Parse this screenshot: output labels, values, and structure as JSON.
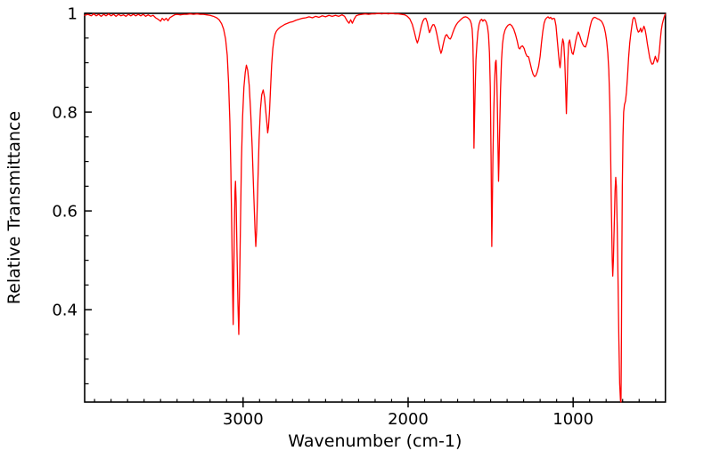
{
  "figure": {
    "background": "#ffffff"
  },
  "chart_data": {
    "type": "line",
    "title": "",
    "xlabel": "Wavenumber (cm-1)",
    "ylabel": "Relative Transmittance",
    "legend": "none",
    "grid": false,
    "line_color": "#ff0000",
    "frame_color": "#000000",
    "x_axis": {
      "lim": [
        3960,
        441
      ],
      "reversed": true,
      "major_ticks": [
        3000,
        2000,
        1000
      ],
      "tick_labels": [
        "3000",
        "2000",
        "1000"
      ],
      "minor_tick_step": 100
    },
    "y_axis": {
      "lim": [
        0.213,
        1.0
      ],
      "major_ticks": [
        1.0,
        0.8,
        0.6,
        0.4
      ],
      "tick_labels": [
        "1",
        "0.8",
        "0.6",
        "0.4"
      ],
      "minor_tick_step": 0.05
    },
    "points": [
      [
        3960,
        0.996
      ],
      [
        3940,
        0.998
      ],
      [
        3920,
        0.995
      ],
      [
        3905,
        0.999
      ],
      [
        3890,
        0.995
      ],
      [
        3875,
        0.998
      ],
      [
        3860,
        0.994
      ],
      [
        3845,
        0.998
      ],
      [
        3830,
        0.995
      ],
      [
        3815,
        0.999
      ],
      [
        3800,
        0.995
      ],
      [
        3785,
        0.998
      ],
      [
        3770,
        0.994
      ],
      [
        3755,
        0.998
      ],
      [
        3740,
        0.995
      ],
      [
        3725,
        0.997
      ],
      [
        3710,
        0.994
      ],
      [
        3695,
        0.998
      ],
      [
        3680,
        0.995
      ],
      [
        3665,
        0.998
      ],
      [
        3650,
        0.995
      ],
      [
        3635,
        0.998
      ],
      [
        3620,
        0.995
      ],
      [
        3605,
        0.998
      ],
      [
        3590,
        0.994
      ],
      [
        3575,
        0.997
      ],
      [
        3560,
        0.994
      ],
      [
        3545,
        0.996
      ],
      [
        3530,
        0.991
      ],
      [
        3515,
        0.988
      ],
      [
        3500,
        0.984
      ],
      [
        3490,
        0.99
      ],
      [
        3478,
        0.986
      ],
      [
        3466,
        0.99
      ],
      [
        3455,
        0.985
      ],
      [
        3444,
        0.991
      ],
      [
        3430,
        0.994
      ],
      [
        3415,
        0.997
      ],
      [
        3400,
        0.998
      ],
      [
        3380,
        0.997
      ],
      [
        3360,
        0.998
      ],
      [
        3340,
        0.998
      ],
      [
        3320,
        0.999
      ],
      [
        3300,
        0.998
      ],
      [
        3280,
        0.999
      ],
      [
        3260,
        0.998
      ],
      [
        3240,
        0.998
      ],
      [
        3220,
        0.997
      ],
      [
        3200,
        0.996
      ],
      [
        3180,
        0.994
      ],
      [
        3160,
        0.991
      ],
      [
        3145,
        0.987
      ],
      [
        3130,
        0.979
      ],
      [
        3118,
        0.968
      ],
      [
        3106,
        0.948
      ],
      [
        3096,
        0.915
      ],
      [
        3088,
        0.86
      ],
      [
        3080,
        0.78
      ],
      [
        3074,
        0.68
      ],
      [
        3068,
        0.55
      ],
      [
        3063,
        0.43
      ],
      [
        3060,
        0.37
      ],
      [
        3057,
        0.45
      ],
      [
        3053,
        0.56
      ],
      [
        3049,
        0.64
      ],
      [
        3046,
        0.66
      ],
      [
        3042,
        0.62
      ],
      [
        3037,
        0.52
      ],
      [
        3031,
        0.41
      ],
      [
        3026,
        0.35
      ],
      [
        3022,
        0.43
      ],
      [
        3016,
        0.57
      ],
      [
        3010,
        0.7
      ],
      [
        3003,
        0.79
      ],
      [
        2995,
        0.85
      ],
      [
        2987,
        0.88
      ],
      [
        2980,
        0.895
      ],
      [
        2972,
        0.885
      ],
      [
        2963,
        0.855
      ],
      [
        2954,
        0.8
      ],
      [
        2945,
        0.73
      ],
      [
        2936,
        0.64
      ],
      [
        2928,
        0.565
      ],
      [
        2923,
        0.528
      ],
      [
        2918,
        0.56
      ],
      [
        2911,
        0.65
      ],
      [
        2903,
        0.745
      ],
      [
        2895,
        0.805
      ],
      [
        2887,
        0.835
      ],
      [
        2878,
        0.845
      ],
      [
        2870,
        0.83
      ],
      [
        2862,
        0.8
      ],
      [
        2855,
        0.775
      ],
      [
        2851,
        0.758
      ],
      [
        2846,
        0.77
      ],
      [
        2840,
        0.8
      ],
      [
        2834,
        0.845
      ],
      [
        2827,
        0.895
      ],
      [
        2820,
        0.928
      ],
      [
        2813,
        0.947
      ],
      [
        2806,
        0.958
      ],
      [
        2798,
        0.964
      ],
      [
        2788,
        0.968
      ],
      [
        2775,
        0.972
      ],
      [
        2760,
        0.975
      ],
      [
        2745,
        0.978
      ],
      [
        2730,
        0.98
      ],
      [
        2715,
        0.982
      ],
      [
        2700,
        0.983
      ],
      [
        2680,
        0.986
      ],
      [
        2660,
        0.988
      ],
      [
        2640,
        0.99
      ],
      [
        2620,
        0.991
      ],
      [
        2600,
        0.993
      ],
      [
        2580,
        0.991
      ],
      [
        2560,
        0.994
      ],
      [
        2540,
        0.992
      ],
      [
        2520,
        0.995
      ],
      [
        2500,
        0.993
      ],
      [
        2480,
        0.996
      ],
      [
        2460,
        0.994
      ],
      [
        2440,
        0.996
      ],
      [
        2420,
        0.994
      ],
      [
        2400,
        0.997
      ],
      [
        2385,
        0.994
      ],
      [
        2370,
        0.985
      ],
      [
        2358,
        0.98
      ],
      [
        2348,
        0.987
      ],
      [
        2338,
        0.98
      ],
      [
        2326,
        0.989
      ],
      [
        2315,
        0.995
      ],
      [
        2300,
        0.997
      ],
      [
        2280,
        0.998
      ],
      [
        2260,
        0.999
      ],
      [
        2240,
        0.998
      ],
      [
        2220,
        0.999
      ],
      [
        2200,
        0.999
      ],
      [
        2180,
        1.0
      ],
      [
        2160,
        0.999
      ],
      [
        2140,
        1.0
      ],
      [
        2120,
        0.999
      ],
      [
        2100,
        1.0
      ],
      [
        2080,
        0.999
      ],
      [
        2060,
        0.999
      ],
      [
        2040,
        0.998
      ],
      [
        2020,
        0.997
      ],
      [
        2005,
        0.994
      ],
      [
        1990,
        0.989
      ],
      [
        1975,
        0.978
      ],
      [
        1962,
        0.962
      ],
      [
        1952,
        0.948
      ],
      [
        1944,
        0.94
      ],
      [
        1937,
        0.947
      ],
      [
        1929,
        0.96
      ],
      [
        1920,
        0.974
      ],
      [
        1911,
        0.984
      ],
      [
        1902,
        0.989
      ],
      [
        1893,
        0.99
      ],
      [
        1884,
        0.982
      ],
      [
        1877,
        0.97
      ],
      [
        1871,
        0.961
      ],
      [
        1865,
        0.965
      ],
      [
        1858,
        0.972
      ],
      [
        1850,
        0.977
      ],
      [
        1843,
        0.977
      ],
      [
        1835,
        0.971
      ],
      [
        1826,
        0.958
      ],
      [
        1816,
        0.941
      ],
      [
        1808,
        0.928
      ],
      [
        1801,
        0.919
      ],
      [
        1795,
        0.925
      ],
      [
        1788,
        0.936
      ],
      [
        1780,
        0.948
      ],
      [
        1773,
        0.955
      ],
      [
        1766,
        0.957
      ],
      [
        1759,
        0.953
      ],
      [
        1751,
        0.949
      ],
      [
        1744,
        0.948
      ],
      [
        1737,
        0.953
      ],
      [
        1729,
        0.961
      ],
      [
        1720,
        0.969
      ],
      [
        1710,
        0.976
      ],
      [
        1700,
        0.981
      ],
      [
        1688,
        0.985
      ],
      [
        1676,
        0.989
      ],
      [
        1664,
        0.992
      ],
      [
        1652,
        0.993
      ],
      [
        1642,
        0.992
      ],
      [
        1632,
        0.989
      ],
      [
        1624,
        0.986
      ],
      [
        1617,
        0.979
      ],
      [
        1612,
        0.968
      ],
      [
        1608,
        0.945
      ],
      [
        1604,
        0.88
      ],
      [
        1601,
        0.727
      ],
      [
        1598,
        0.78
      ],
      [
        1594,
        0.845
      ],
      [
        1589,
        0.906
      ],
      [
        1583,
        0.938
      ],
      [
        1577,
        0.963
      ],
      [
        1570,
        0.978
      ],
      [
        1562,
        0.986
      ],
      [
        1554,
        0.988
      ],
      [
        1547,
        0.984
      ],
      [
        1540,
        0.987
      ],
      [
        1533,
        0.986
      ],
      [
        1526,
        0.982
      ],
      [
        1519,
        0.973
      ],
      [
        1513,
        0.957
      ],
      [
        1507,
        0.92
      ],
      [
        1502,
        0.85
      ],
      [
        1497,
        0.7
      ],
      [
        1493,
        0.528
      ],
      [
        1490,
        0.6
      ],
      [
        1486,
        0.71
      ],
      [
        1481,
        0.8
      ],
      [
        1476,
        0.862
      ],
      [
        1471,
        0.9
      ],
      [
        1467,
        0.905
      ],
      [
        1463,
        0.875
      ],
      [
        1459,
        0.81
      ],
      [
        1455,
        0.72
      ],
      [
        1452,
        0.66
      ],
      [
        1449,
        0.7
      ],
      [
        1445,
        0.77
      ],
      [
        1440,
        0.845
      ],
      [
        1434,
        0.905
      ],
      [
        1428,
        0.938
      ],
      [
        1421,
        0.956
      ],
      [
        1413,
        0.966
      ],
      [
        1404,
        0.972
      ],
      [
        1394,
        0.976
      ],
      [
        1383,
        0.978
      ],
      [
        1372,
        0.975
      ],
      [
        1360,
        0.968
      ],
      [
        1349,
        0.957
      ],
      [
        1339,
        0.944
      ],
      [
        1330,
        0.93
      ],
      [
        1323,
        0.928
      ],
      [
        1315,
        0.933
      ],
      [
        1306,
        0.934
      ],
      [
        1297,
        0.929
      ],
      [
        1288,
        0.919
      ],
      [
        1279,
        0.913
      ],
      [
        1270,
        0.912
      ],
      [
        1261,
        0.9
      ],
      [
        1252,
        0.887
      ],
      [
        1243,
        0.877
      ],
      [
        1234,
        0.872
      ],
      [
        1226,
        0.874
      ],
      [
        1218,
        0.881
      ],
      [
        1209,
        0.893
      ],
      [
        1200,
        0.913
      ],
      [
        1192,
        0.94
      ],
      [
        1184,
        0.963
      ],
      [
        1176,
        0.98
      ],
      [
        1168,
        0.988
      ],
      [
        1160,
        0.991
      ],
      [
        1152,
        0.993
      ],
      [
        1144,
        0.99
      ],
      [
        1136,
        0.992
      ],
      [
        1128,
        0.988
      ],
      [
        1120,
        0.99
      ],
      [
        1112,
        0.989
      ],
      [
        1104,
        0.975
      ],
      [
        1096,
        0.945
      ],
      [
        1088,
        0.915
      ],
      [
        1082,
        0.895
      ],
      [
        1079,
        0.89
      ],
      [
        1075,
        0.905
      ],
      [
        1069,
        0.932
      ],
      [
        1063,
        0.948
      ],
      [
        1057,
        0.94
      ],
      [
        1051,
        0.905
      ],
      [
        1046,
        0.855
      ],
      [
        1041,
        0.797
      ],
      [
        1037,
        0.845
      ],
      [
        1032,
        0.905
      ],
      [
        1027,
        0.94
      ],
      [
        1021,
        0.946
      ],
      [
        1014,
        0.932
      ],
      [
        1007,
        0.92
      ],
      [
        1000,
        0.917
      ],
      [
        993,
        0.928
      ],
      [
        985,
        0.943
      ],
      [
        977,
        0.955
      ],
      [
        969,
        0.962
      ],
      [
        961,
        0.956
      ],
      [
        952,
        0.946
      ],
      [
        943,
        0.938
      ],
      [
        934,
        0.933
      ],
      [
        925,
        0.932
      ],
      [
        916,
        0.941
      ],
      [
        907,
        0.956
      ],
      [
        898,
        0.972
      ],
      [
        889,
        0.984
      ],
      [
        880,
        0.99
      ],
      [
        871,
        0.992
      ],
      [
        862,
        0.991
      ],
      [
        853,
        0.989
      ],
      [
        844,
        0.988
      ],
      [
        836,
        0.986
      ],
      [
        828,
        0.984
      ],
      [
        820,
        0.979
      ],
      [
        812,
        0.972
      ],
      [
        804,
        0.96
      ],
      [
        797,
        0.944
      ],
      [
        790,
        0.92
      ],
      [
        784,
        0.885
      ],
      [
        778,
        0.82
      ],
      [
        773,
        0.72
      ],
      [
        768,
        0.6
      ],
      [
        763,
        0.5
      ],
      [
        760,
        0.468
      ],
      [
        756,
        0.5
      ],
      [
        751,
        0.57
      ],
      [
        746,
        0.64
      ],
      [
        742,
        0.668
      ],
      [
        738,
        0.65
      ],
      [
        733,
        0.57
      ],
      [
        728,
        0.46
      ],
      [
        723,
        0.34
      ],
      [
        718,
        0.25
      ],
      [
        713,
        0.215
      ],
      [
        710,
        0.213
      ],
      [
        708,
        0.3
      ],
      [
        705,
        0.5
      ],
      [
        702,
        0.65
      ],
      [
        698,
        0.75
      ],
      [
        694,
        0.8
      ],
      [
        689,
        0.815
      ],
      [
        683,
        0.822
      ],
      [
        677,
        0.84
      ],
      [
        671,
        0.87
      ],
      [
        664,
        0.91
      ],
      [
        657,
        0.94
      ],
      [
        650,
        0.96
      ],
      [
        644,
        0.975
      ],
      [
        638,
        0.988
      ],
      [
        632,
        0.992
      ],
      [
        626,
        0.99
      ],
      [
        619,
        0.98
      ],
      [
        612,
        0.968
      ],
      [
        605,
        0.962
      ],
      [
        598,
        0.964
      ],
      [
        591,
        0.97
      ],
      [
        585,
        0.962
      ],
      [
        578,
        0.967
      ],
      [
        571,
        0.974
      ],
      [
        564,
        0.967
      ],
      [
        557,
        0.954
      ],
      [
        550,
        0.938
      ],
      [
        543,
        0.924
      ],
      [
        536,
        0.91
      ],
      [
        529,
        0.902
      ],
      [
        522,
        0.897
      ],
      [
        515,
        0.898
      ],
      [
        508,
        0.906
      ],
      [
        502,
        0.913
      ],
      [
        496,
        0.907
      ],
      [
        490,
        0.901
      ],
      [
        484,
        0.907
      ],
      [
        478,
        0.922
      ],
      [
        472,
        0.946
      ],
      [
        466,
        0.966
      ],
      [
        460,
        0.978
      ],
      [
        454,
        0.986
      ],
      [
        448,
        0.993
      ],
      [
        443,
        0.997
      ],
      [
        441,
        0.998
      ]
    ]
  }
}
